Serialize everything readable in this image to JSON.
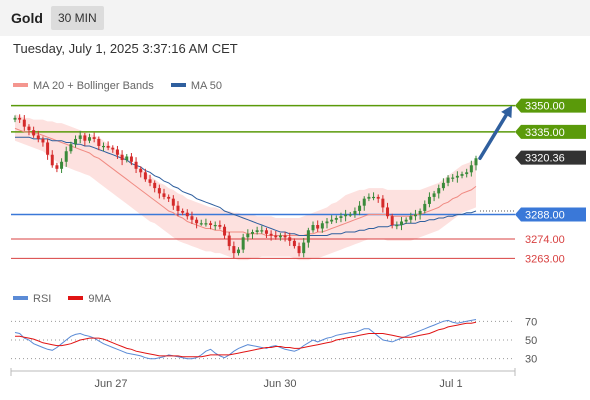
{
  "header": {
    "title": "Gold",
    "timeframe": "30 MIN"
  },
  "datetime": "Tuesday, July 1, 2025 3:37:16 AM CET",
  "main_legend": [
    {
      "label": "MA 20 + Bollinger Bands",
      "color": "#f4968f"
    },
    {
      "label": "MA 50",
      "color": "#2f5f9e"
    }
  ],
  "rsi_legend": [
    {
      "label": "RSI",
      "color": "#5b8bd6"
    },
    {
      "label": "9MA",
      "color": "#e01414"
    }
  ],
  "colors": {
    "up": "#3a8a3a",
    "down": "#d42a2a",
    "resistance": "#5a9a0a",
    "support": "#3a78d8",
    "target": "#d84040",
    "arrow": "#2f5f9e",
    "current": "#333333"
  },
  "chart_data": [
    {
      "type": "candlestick",
      "ylim": [
        3245,
        3360
      ],
      "x_tick_labels": [
        "Jun 27",
        "Jun 30",
        "Jul 1"
      ],
      "current_price": 3320.36,
      "current_price_label": "3320.36",
      "levels": [
        {
          "value": 3350.0,
          "label": "3350.00",
          "kind": "resistance"
        },
        {
          "value": 3335.0,
          "label": "3335.00",
          "kind": "resistance"
        },
        {
          "value": 3288.0,
          "label": "3288.00",
          "kind": "support"
        },
        {
          "value": 3274.0,
          "label": "3274.00",
          "kind": "target"
        },
        {
          "value": 3263.0,
          "label": "3263.00",
          "kind": "target"
        }
      ],
      "forecast_arrow": {
        "from": 3320,
        "to": 3350
      },
      "dotted_ref": 3290,
      "closes": [
        3343,
        3342,
        3338,
        3336,
        3333,
        3331,
        3329,
        3322,
        3316,
        3314,
        3318,
        3324,
        3328,
        3331,
        3333,
        3330,
        3332,
        3331,
        3327,
        3327,
        3326,
        3325,
        3322,
        3319,
        3321,
        3318,
        3314,
        3312,
        3308,
        3306,
        3303,
        3300,
        3298,
        3297,
        3293,
        3290,
        3289,
        3287,
        3285,
        3283,
        3283,
        3283,
        3282,
        3282,
        3281,
        3276,
        3270,
        3266,
        3268,
        3275,
        3277,
        3278,
        3279,
        3279,
        3277,
        3276,
        3275,
        3276,
        3275,
        3273,
        3270,
        3266,
        3272,
        3279,
        3282,
        3280,
        3283,
        3284,
        3285,
        3286,
        3287,
        3288,
        3288,
        3290,
        3293,
        3297,
        3298,
        3298,
        3297,
        3292,
        3287,
        3282,
        3282,
        3284,
        3285,
        3287,
        3288,
        3290,
        3294,
        3298,
        3300,
        3303,
        3306,
        3309,
        3309,
        3310,
        3311,
        3312,
        3316,
        3320
      ],
      "ma20": [
        3337,
        3336,
        3335,
        3335,
        3334,
        3334,
        3333,
        3332,
        3331,
        3330,
        3329,
        3328,
        3327,
        3326,
        3325,
        3324,
        3323,
        3321,
        3320,
        3318,
        3316,
        3314,
        3312,
        3310,
        3308,
        3306,
        3304,
        3302,
        3300,
        3298,
        3296,
        3294,
        3292,
        3290,
        3289,
        3287,
        3286,
        3284,
        3283,
        3282,
        3281,
        3280,
        3280,
        3279,
        3279,
        3278,
        3278,
        3278,
        3278,
        3278,
        3277,
        3277,
        3277,
        3277,
        3276,
        3276,
        3276,
        3276,
        3276,
        3276,
        3276,
        3276,
        3276,
        3277,
        3277,
        3278,
        3278,
        3279,
        3280,
        3281,
        3282,
        3283,
        3284,
        3285,
        3286,
        3287,
        3288,
        3288,
        3288,
        3288,
        3288,
        3287,
        3287,
        3287,
        3287,
        3287,
        3288,
        3288,
        3289,
        3290,
        3291,
        3292,
        3294,
        3295,
        3297,
        3298,
        3300,
        3301,
        3302,
        3304
      ],
      "bb_upper": [
        3345,
        3344,
        3343,
        3343,
        3342,
        3342,
        3342,
        3341,
        3341,
        3340,
        3340,
        3339,
        3338,
        3337,
        3336,
        3335,
        3334,
        3333,
        3332,
        3330,
        3328,
        3326,
        3324,
        3322,
        3320,
        3318,
        3316,
        3314,
        3312,
        3310,
        3308,
        3306,
        3305,
        3303,
        3302,
        3300,
        3299,
        3297,
        3296,
        3295,
        3294,
        3293,
        3292,
        3292,
        3291,
        3290,
        3290,
        3289,
        3289,
        3288,
        3288,
        3288,
        3287,
        3287,
        3287,
        3287,
        3286,
        3286,
        3286,
        3286,
        3286,
        3286,
        3287,
        3288,
        3289,
        3290,
        3291,
        3292,
        3294,
        3295,
        3297,
        3299,
        3300,
        3301,
        3302,
        3302,
        3303,
        3303,
        3303,
        3303,
        3302,
        3302,
        3302,
        3302,
        3302,
        3302,
        3302,
        3302,
        3303,
        3304,
        3305,
        3306,
        3308,
        3310,
        3312,
        3314,
        3316,
        3317,
        3318,
        3319
      ],
      "bb_lower": [
        3330,
        3329,
        3328,
        3327,
        3326,
        3325,
        3324,
        3322,
        3320,
        3318,
        3316,
        3315,
        3314,
        3313,
        3312,
        3311,
        3310,
        3308,
        3306,
        3304,
        3302,
        3300,
        3298,
        3296,
        3294,
        3292,
        3290,
        3288,
        3286,
        3284,
        3283,
        3281,
        3279,
        3277,
        3275,
        3273,
        3272,
        3271,
        3270,
        3269,
        3268,
        3267,
        3267,
        3266,
        3266,
        3265,
        3264,
        3263,
        3262,
        3262,
        3262,
        3263,
        3263,
        3264,
        3264,
        3264,
        3264,
        3264,
        3264,
        3264,
        3263,
        3262,
        3262,
        3262,
        3263,
        3263,
        3264,
        3265,
        3266,
        3267,
        3268,
        3269,
        3270,
        3271,
        3272,
        3273,
        3274,
        3274,
        3274,
        3274,
        3273,
        3273,
        3273,
        3273,
        3273,
        3273,
        3274,
        3275,
        3276,
        3277,
        3278,
        3279,
        3281,
        3283,
        3285,
        3287,
        3289,
        3290,
        3291,
        3292
      ],
      "ma50": [
        3332,
        3332,
        3332,
        3332,
        3331,
        3331,
        3331,
        3331,
        3330,
        3330,
        3330,
        3329,
        3329,
        3328,
        3328,
        3327,
        3327,
        3326,
        3325,
        3324,
        3323,
        3322,
        3321,
        3320,
        3319,
        3317,
        3316,
        3315,
        3313,
        3312,
        3310,
        3309,
        3307,
        3306,
        3304,
        3303,
        3301,
        3300,
        3299,
        3297,
        3296,
        3295,
        3294,
        3293,
        3292,
        3290,
        3289,
        3288,
        3287,
        3286,
        3285,
        3284,
        3283,
        3282,
        3281,
        3280,
        3279,
        3278,
        3278,
        3277,
        3277,
        3276,
        3276,
        3276,
        3276,
        3276,
        3276,
        3276,
        3277,
        3277,
        3277,
        3278,
        3278,
        3278,
        3279,
        3279,
        3280,
        3280,
        3281,
        3281,
        3281,
        3282,
        3282,
        3282,
        3283,
        3283,
        3283,
        3284,
        3284,
        3285,
        3285,
        3286,
        3286,
        3287,
        3287,
        3288,
        3288,
        3289,
        3289,
        3290
      ]
    },
    {
      "type": "line",
      "series_names": [
        "RSI",
        "9MA"
      ],
      "ylim": [
        20,
        80
      ],
      "ticks": [
        70,
        50,
        30
      ],
      "tick_labels": [
        "70",
        "50",
        "30"
      ],
      "rsi": [
        58,
        57,
        52,
        50,
        46,
        44,
        42,
        40,
        39,
        42,
        46,
        50,
        54,
        56,
        57,
        55,
        54,
        52,
        49,
        46,
        44,
        42,
        40,
        38,
        36,
        35,
        34,
        33,
        31,
        30,
        30,
        31,
        32,
        34,
        33,
        32,
        31,
        30,
        30,
        31,
        34,
        38,
        40,
        36,
        33,
        31,
        34,
        38,
        41,
        43,
        45,
        44,
        43,
        42,
        41,
        43,
        44,
        42,
        40,
        39,
        38,
        40,
        44,
        47,
        50,
        48,
        50,
        52,
        53,
        55,
        56,
        57,
        58,
        58,
        60,
        62,
        62,
        58,
        54,
        50,
        49,
        48,
        50,
        52,
        54,
        56,
        58,
        60,
        62,
        64,
        66,
        68,
        70,
        71,
        69,
        68,
        69,
        70,
        71,
        72
      ],
      "ma9": [
        54,
        54,
        53,
        52,
        51,
        49,
        47,
        46,
        45,
        44,
        44,
        45,
        46,
        48,
        50,
        51,
        52,
        52,
        52,
        51,
        49,
        47,
        45,
        43,
        41,
        40,
        38,
        37,
        36,
        35,
        34,
        33,
        33,
        33,
        33,
        33,
        32,
        32,
        32,
        32,
        32,
        33,
        34,
        34,
        34,
        34,
        34,
        35,
        36,
        37,
        38,
        39,
        40,
        41,
        42,
        42,
        43,
        43,
        42,
        42,
        41,
        41,
        42,
        43,
        44,
        45,
        46,
        47,
        48,
        50,
        51,
        52,
        53,
        54,
        55,
        56,
        57,
        57,
        57,
        57,
        56,
        55,
        54,
        53,
        53,
        53,
        54,
        55,
        56,
        57,
        59,
        61,
        62,
        64,
        65,
        66,
        67,
        68,
        68,
        69
      ]
    }
  ]
}
